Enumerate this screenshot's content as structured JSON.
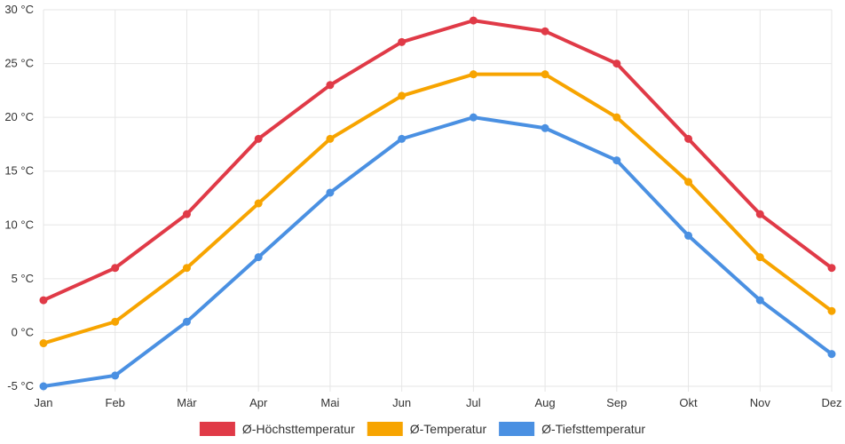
{
  "chart_data": {
    "type": "line",
    "title": "",
    "xlabel": "",
    "ylabel": "",
    "categories": [
      "Jan",
      "Feb",
      "Mär",
      "Apr",
      "Mai",
      "Jun",
      "Jul",
      "Aug",
      "Sep",
      "Okt",
      "Nov",
      "Dez"
    ],
    "y_ticks": [
      "-5 °C",
      "0 °C",
      "5 °C",
      "10 °C",
      "15 °C",
      "20 °C",
      "25 °C",
      "30 °C"
    ],
    "ylim": [
      -5,
      30
    ],
    "grid": true,
    "legend_position": "bottom",
    "series": [
      {
        "name": "Ø-Höchsttemperatur",
        "color": "#e03a47",
        "values": [
          3,
          6,
          11,
          18,
          23,
          27,
          29,
          28,
          25,
          18,
          11,
          6
        ]
      },
      {
        "name": "Ø-Temperatur",
        "color": "#f7a400",
        "values": [
          -1,
          1,
          6,
          12,
          18,
          22,
          24,
          24,
          20,
          14,
          7,
          2
        ]
      },
      {
        "name": "Ø-Tiefsttemperatur",
        "color": "#4a90e2",
        "values": [
          -5,
          -4,
          1,
          7,
          13,
          18,
          20,
          19,
          16,
          9,
          3,
          -2
        ]
      }
    ]
  }
}
